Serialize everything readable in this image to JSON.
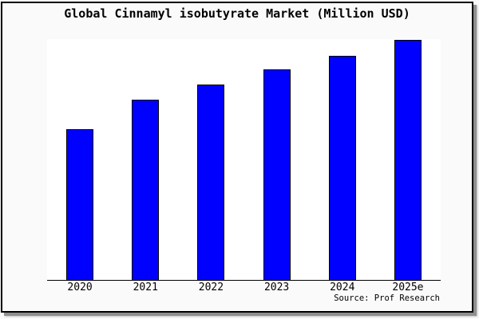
{
  "title": "Global Cinnamyl isobutyrate Market (Million USD)",
  "source": "Source: Prof Research",
  "colors": {
    "canvas_bg": "#fafafa",
    "plot_bg": "#ffffff",
    "frame_border": "#000000",
    "shadow": "#8f8f8f",
    "bar_fill": "#0000ff",
    "bar_edge": "#000000",
    "axis_line": "#000000",
    "text": "#000000"
  },
  "chart_data": {
    "type": "bar",
    "title": "Global Cinnamyl isobutyrate Market (Million USD)",
    "categories": [
      "2020",
      "2021",
      "2022",
      "2023",
      "2024",
      "2025e"
    ],
    "values": [
      62.6,
      74.8,
      81.1,
      87.4,
      93.0,
      99.7
    ],
    "units_note": "no y-axis or data labels shown; values estimated as percent of plot height (2025e bar nearly fills plot)",
    "xlabel": "",
    "ylabel": "",
    "ylim": [
      0,
      100
    ],
    "grid": false,
    "legend": false,
    "bar_color": "#0000ff",
    "bar_edge_color": "#000000",
    "source": "Source: Prof Research"
  }
}
